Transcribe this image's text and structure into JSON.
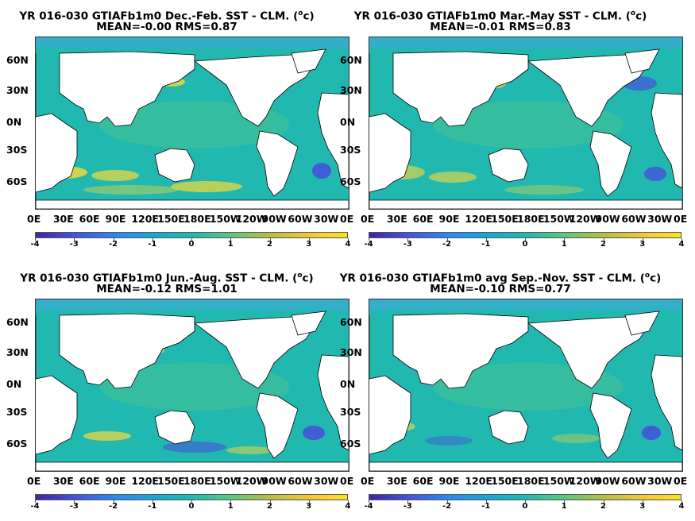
{
  "panels": [
    {
      "title_prefix": "YR 016-030 GTIAFb1m0  Dec.-Feb. SST - CLM. (",
      "title_sup": "o",
      "title_suffix": "c)",
      "stats": "MEAN=-0.00   RMS=0.87"
    },
    {
      "title_prefix": "YR 016-030 GTIAFb1m0 Mar.-May SST - CLM. (",
      "title_sup": "o",
      "title_suffix": "c)",
      "stats": "MEAN=-0.01   RMS=0.83"
    },
    {
      "title_prefix": "YR 016-030 GTIAFb1m0 Jun.-Aug. SST - CLM. (",
      "title_sup": "o",
      "title_suffix": "c)",
      "stats": "MEAN=-0.12   RMS=1.01"
    },
    {
      "title_prefix": "YR 016-030 GTIAFb1m0 avg Sep.-Nov. SST - CLM. (",
      "title_sup": "o",
      "title_suffix": "c)",
      "stats": "MEAN=-0.10   RMS=0.77"
    }
  ],
  "lat_ticks": [
    "60N",
    "30N",
    "0N",
    "30S",
    "60S"
  ],
  "lon_ticks": [
    "0E",
    "30E",
    "60E",
    "90E",
    "120E",
    "150E",
    "180E",
    "150W",
    "120W",
    "90W",
    "60W",
    "30W",
    "0E"
  ],
  "colorbar": {
    "ticks": [
      "-4",
      "-3",
      "-2",
      "-1",
      "0",
      "1",
      "2",
      "3",
      "4"
    ],
    "colors": [
      "#3e26a8",
      "#4553d8",
      "#2e87f2",
      "#18a6d5",
      "#21b8b0",
      "#5dc581",
      "#b4be42",
      "#f5c53a",
      "#f7e41e"
    ]
  },
  "colors": {
    "ocean_base": "#21b8b0",
    "land": "#ffffff",
    "warm": "#f7d93a",
    "cool": "#4553d8"
  }
}
